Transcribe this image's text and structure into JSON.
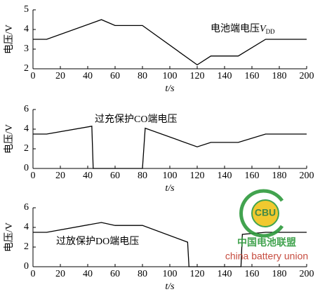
{
  "chart_data": [
    {
      "type": "line",
      "ylabel": "电压/V",
      "xlabel": "t/s",
      "annotation": "电池端电压",
      "annotation_symbol": "V",
      "annotation_subscript": "DD",
      "x": [
        0,
        10,
        50,
        60,
        80,
        120,
        130,
        150,
        170,
        200
      ],
      "series": [
        {
          "color": "#000000",
          "values": [
            3.5,
            3.5,
            4.5,
            4.2,
            4.2,
            2.2,
            2.65,
            2.65,
            3.5,
            3.5
          ]
        }
      ],
      "xlim": [
        0,
        200
      ],
      "ylim": [
        2,
        5
      ],
      "xticks": [
        0,
        20,
        40,
        60,
        80,
        100,
        120,
        140,
        160,
        180,
        200
      ],
      "yticks": [
        2,
        3,
        4,
        5
      ]
    },
    {
      "type": "line",
      "ylabel": "电压/V",
      "xlabel": "t/s",
      "annotation": "过充保护CO端电压",
      "x": [
        0,
        10,
        43,
        44,
        80,
        82,
        120,
        130,
        150,
        170,
        200
      ],
      "series": [
        {
          "color": "#000000",
          "values": [
            3.5,
            3.5,
            4.3,
            0,
            0,
            4.1,
            2.2,
            2.65,
            2.65,
            3.5,
            3.5
          ]
        }
      ],
      "xlim": [
        0,
        200
      ],
      "ylim": [
        0,
        6
      ],
      "xticks": [
        0,
        20,
        40,
        60,
        80,
        100,
        120,
        140,
        160,
        180,
        200
      ],
      "yticks": [
        0,
        2,
        4,
        6
      ]
    },
    {
      "type": "line",
      "ylabel": "电压/V",
      "xlabel": "t/s",
      "annotation": "过放保护DO端电压",
      "x": [
        0,
        10,
        50,
        60,
        80,
        113,
        114,
        152,
        153,
        170,
        200
      ],
      "series": [
        {
          "color": "#000000",
          "values": [
            3.5,
            3.5,
            4.5,
            4.2,
            4.2,
            2.5,
            0,
            0,
            3.3,
            3.5,
            3.5
          ]
        }
      ],
      "xlim": [
        0,
        200
      ],
      "ylim": [
        0,
        6
      ],
      "xticks": [
        0,
        20,
        40,
        60,
        80,
        100,
        120,
        140,
        160,
        180,
        200
      ],
      "yticks": [
        0,
        2,
        4,
        6
      ]
    }
  ],
  "watermark": {
    "badge": "CBU",
    "name": "中国电池联盟",
    "subtitle": "china battery union"
  }
}
